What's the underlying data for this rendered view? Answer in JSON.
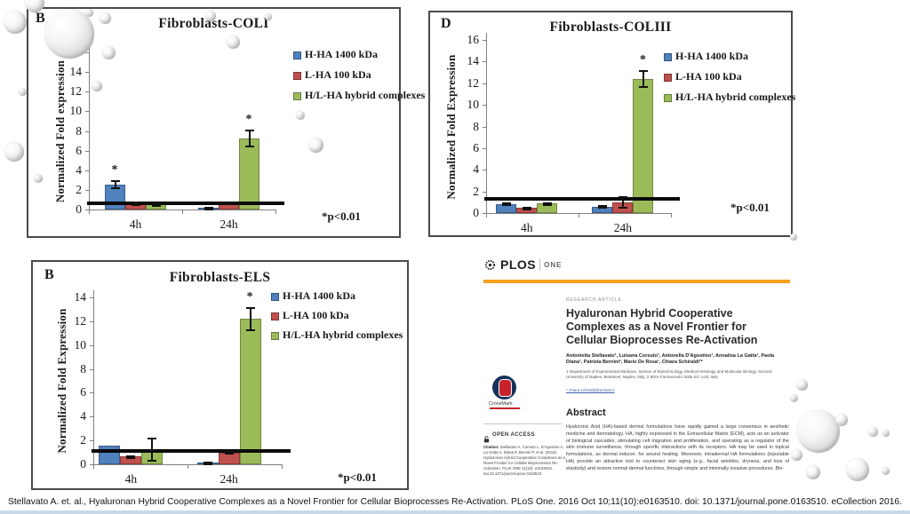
{
  "page": {
    "caption": "Stellavato A. et. al., Hyaluronan Hybrid Cooperative Complexes as a Novel Frontier for Cellular Bioprocesses Re-Activation. PLoS One. 2016 Oct 10;11(10):e0163510. doi: 10.1371/journal.pone.0163510. eCollection 2016."
  },
  "colors": {
    "h_ha_blue": "#4f81bd",
    "l_ha_red": "#c0504d",
    "hybrid_green": "#9bbb59",
    "plos_orange": "#f5a01e",
    "crossmark_navy": "#16325c",
    "crossmark_red": "#c8232c",
    "footer_strip_blue": "#c9d9ea",
    "chart_border_gray": "#4a4a4a"
  },
  "chart_data": [
    {
      "type": "bar",
      "panel": "B",
      "title": "Fibroblasts-COLI",
      "ylabel": "Normalized Fold expression",
      "categories": [
        "4h",
        "24h"
      ],
      "ylim": [
        0,
        16
      ],
      "ytick_step": 2,
      "grid": false,
      "reference_line": 0.65,
      "significance_note": "*p<0.01",
      "legend_position": "top-right",
      "series": [
        {
          "name": "H-HA 1400 kDa",
          "color": "#4f81bd",
          "values": [
            2.5,
            0.2
          ],
          "errors": [
            0.45,
            0.08
          ],
          "significant": [
            true,
            false
          ]
        },
        {
          "name": "L-HA 100 kDa",
          "color": "#c0504d",
          "values": [
            0.6,
            0.7
          ],
          "errors": [
            0.25,
            0.1
          ],
          "significant": [
            false,
            false
          ]
        },
        {
          "name": "H/L-HA hybrid complexes",
          "color": "#9bbb59",
          "values": [
            0.55,
            7.2
          ],
          "errors": [
            0.12,
            0.9
          ],
          "significant": [
            false,
            true
          ]
        }
      ]
    },
    {
      "type": "bar",
      "panel": "D",
      "title": "Fibroblasts-COLIII",
      "ylabel": "Normalized Fold Expression",
      "categories": [
        "4h",
        "24h"
      ],
      "ylim": [
        0,
        16
      ],
      "ytick_step": 2,
      "grid": false,
      "reference_line": 1.3,
      "significance_note": "*p<0.01",
      "legend_position": "top-right",
      "series": [
        {
          "name": "H-HA 1400 kDa",
          "color": "#4f81bd",
          "values": [
            0.85,
            0.6
          ],
          "errors": [
            0.12,
            0.12
          ],
          "significant": [
            false,
            false
          ]
        },
        {
          "name": "L-HA 100 kDa",
          "color": "#c0504d",
          "values": [
            0.5,
            1.0
          ],
          "errors": [
            0.1,
            0.55
          ],
          "significant": [
            false,
            false
          ]
        },
        {
          "name": "H/L-HA hybrid complexes",
          "color": "#9bbb59",
          "values": [
            0.9,
            12.4
          ],
          "errors": [
            0.08,
            0.85
          ],
          "significant": [
            false,
            true
          ]
        }
      ]
    },
    {
      "type": "bar",
      "panel": "B",
      "title": "Fibroblasts-ELS",
      "ylabel": "Normalized Fold Expression",
      "categories": [
        "4h",
        "24h"
      ],
      "ylim": [
        0,
        14
      ],
      "ytick_step": 2,
      "grid": false,
      "reference_line": 1.15,
      "significance_note": "*p<0.01",
      "legend_position": "top-right",
      "series": [
        {
          "name": "H-HA 1400 kDa",
          "color": "#4f81bd",
          "values": [
            1.55,
            0.15
          ],
          "errors": [
            0,
            0.05
          ],
          "significant": [
            false,
            false
          ]
        },
        {
          "name": "L-HA 100 kDa",
          "color": "#c0504d",
          "values": [
            0.65,
            1.0
          ],
          "errors": [
            0.1,
            0.15
          ],
          "significant": [
            false,
            false
          ]
        },
        {
          "name": "H/L-HA hybrid complexes",
          "color": "#9bbb59",
          "values": [
            1.2,
            12.2
          ],
          "errors": [
            1.0,
            1.0
          ],
          "significant": [
            false,
            true
          ]
        }
      ]
    }
  ],
  "paper": {
    "journal": {
      "name": "PLOS",
      "edition": "ONE"
    },
    "article_type": "RESEARCH ARTICLE",
    "title": "Hyaluronan Hybrid Cooperative Complexes as a Novel Frontier for Cellular Bioprocesses Re-Activation",
    "authors": "Antonietta Stellavato¹, Luisana Corsuto¹, Antonella D'Agostino¹, Annalisa La Gatta¹, Paola Diana¹, Patrizia Bernini², Mario De Rosa¹, Chiara Schiraldi¹*",
    "affiliations": "1 Department of Experimental Medicine, Section of Biotechnology, Medical Histology and Molecular Biology, Second University of Naples, Bioteknet, Naples, Italy, 2 IBSA Farmaceutici Italia Srl, Lodi, Italy",
    "email": "* chiara.schiraldi@unina2.it",
    "crossmark_label": "CrossMark",
    "open_access_label": "OPEN ACCESS",
    "citation_label": "Citation:",
    "citation_text": "Stellavato A, Corsuto L, D'Agostino A, La Gatta A, Diana P, Bernini P, et al. (2016) Hyaluronan Hybrid Cooperative Complexes as a Novel Frontier for Cellular Bioprocesses Re-Activation. PLoS ONE 11(10): e0163510. doi:10.1371/journal.pone.0163510",
    "abstract_heading": "Abstract",
    "abstract_text": "Hyaluronic Acid (HA)-based dermal formulations have rapidly gained a large consensus in aesthetic medicine and dermatology. HA, highly expressed in the Extracellular Matrix (ECM), acts as an activator of biological cascades, stimulating cell migration and proliferation, and operating as a regulator of the skin immune surveillance, through specific interactions with its receptors. HA may be used in topical formulations, as dermal inducer, for wound healing. Moreover, intradermal HA formulations (injectable HA) provide an attractive tool to counteract skin aging (e.g., facial wrinkles, dryness, and loss of elasticity) and restore normal dermal functions, through simple and minimally invasive procedures. Bio-"
  }
}
